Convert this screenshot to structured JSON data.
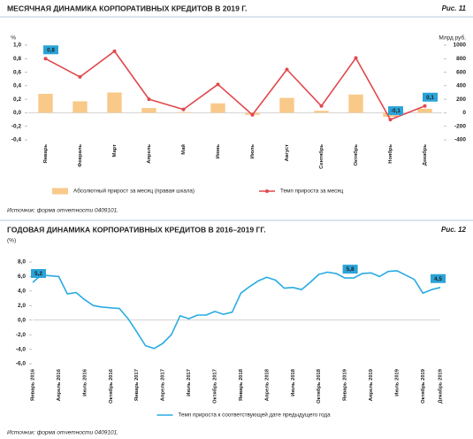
{
  "chart_data": [
    {
      "type": "bar_line",
      "title": "МЕСЯЧНАЯ ДИНАМИКА КОРПОРАТИВНЫХ КРЕДИТОВ В 2019 Г.",
      "figure_label": "Рис. 11",
      "y_label": "%",
      "y2_label": "Млрд руб.",
      "categories": [
        "Январь",
        "Февраль",
        "Март",
        "Апрель",
        "Май",
        "Июнь",
        "Июль",
        "Август",
        "Сентябрь",
        "Октябрь",
        "Ноябрь",
        "Декабрь"
      ],
      "series": [
        {
          "name": "Абсолютный прирост за месяц (правая шкала)",
          "type": "bar",
          "axis": "y2",
          "color": "#f9c98a",
          "values": [
            280,
            170,
            300,
            70,
            10,
            140,
            -30,
            220,
            30,
            270,
            -60,
            60
          ]
        },
        {
          "name": "Темп прироста за месяц",
          "type": "line",
          "color": "#e0484d",
          "marker": true,
          "values": [
            0.8,
            0.53,
            0.91,
            0.2,
            0.05,
            0.42,
            -0.03,
            0.64,
            0.1,
            0.81,
            -0.1,
            0.1
          ],
          "value_labels": [
            "0,8",
            null,
            null,
            null,
            null,
            null,
            null,
            null,
            null,
            null,
            "-0,1",
            "0,1"
          ]
        }
      ],
      "ylim": [
        -0.4,
        1.0
      ],
      "yticks": [
        {
          "value": 1.0,
          "label": "1,0"
        },
        {
          "value": 0.8,
          "label": "0,8"
        },
        {
          "value": 0.6,
          "label": "0,6"
        },
        {
          "value": 0.4,
          "label": "0,4"
        },
        {
          "value": 0.2,
          "label": "0,2"
        },
        {
          "value": 0.0,
          "label": "0,0"
        },
        {
          "value": -0.2,
          "label": "-0,2"
        },
        {
          "value": -0.4,
          "label": "-0,4"
        }
      ],
      "y2lim": [
        -400,
        1000
      ],
      "y2ticks": [
        1000,
        800,
        600,
        400,
        200,
        0,
        -200,
        -400
      ],
      "grid": false,
      "legend": "bottom",
      "source": "Источник: форма отчетности 0409101."
    },
    {
      "type": "line",
      "title": "ГОДОВАЯ ДИНАМИКА КОРПОРАТИВНЫХ КРЕДИТОВ В 2016–2019 ГГ.",
      "figure_label": "Рис. 12",
      "y_label": "(%)",
      "categories": [
        "Январь 2016",
        null,
        null,
        "Апрель 2016",
        null,
        null,
        "Июль 2016",
        null,
        null,
        "Октябрь 2016",
        null,
        null,
        "Январь 2017",
        null,
        null,
        "Апрель 2017",
        null,
        null,
        "Июль 2017",
        null,
        null,
        "Октябрь 2017",
        null,
        null,
        "Январь 2018",
        null,
        null,
        "Апрель 2018",
        null,
        null,
        "Июль 2018",
        null,
        null,
        "Октябрь 2018",
        null,
        null,
        "Январь 2019",
        null,
        null,
        "Апрель 2019",
        null,
        null,
        "Июль 2019",
        null,
        null,
        "Октябрь 2019",
        null,
        "Декабрь 2019"
      ],
      "series": [
        {
          "name": "Темп прироста к соответствующей дате предыдущего года",
          "type": "line",
          "color": "#2aabe2",
          "marker": false,
          "values": [
            5.2,
            6.2,
            6.1,
            6.0,
            3.6,
            3.8,
            2.8,
            2.0,
            1.8,
            1.7,
            1.6,
            0.2,
            -1.6,
            -3.5,
            -3.9,
            -3.2,
            -2.0,
            0.6,
            0.2,
            0.7,
            0.7,
            1.2,
            0.8,
            1.1,
            3.7,
            4.6,
            5.4,
            5.9,
            5.5,
            4.4,
            4.5,
            4.2,
            5.2,
            6.3,
            6.6,
            6.4,
            5.8,
            5.8,
            6.4,
            6.5,
            6.0,
            6.7,
            6.8,
            6.2,
            5.6,
            3.7,
            4.2,
            4.5
          ],
          "value_labels": [
            "5,2",
            null,
            null,
            null,
            null,
            null,
            null,
            null,
            null,
            null,
            null,
            null,
            null,
            null,
            null,
            null,
            null,
            null,
            null,
            null,
            null,
            null,
            null,
            null,
            null,
            null,
            null,
            null,
            null,
            null,
            null,
            null,
            null,
            null,
            null,
            null,
            "5,8",
            null,
            null,
            null,
            null,
            null,
            null,
            null,
            null,
            null,
            null,
            "4,5"
          ]
        }
      ],
      "ylim": [
        -6.0,
        8.0
      ],
      "yticks": [
        {
          "value": 8.0,
          "label": "8,0"
        },
        {
          "value": 6.0,
          "label": "6,0"
        },
        {
          "value": 4.0,
          "label": "4,0"
        },
        {
          "value": 2.0,
          "label": "2,0"
        },
        {
          "value": 0.0,
          "label": "0,0"
        },
        {
          "value": -2.0,
          "label": "-2,0"
        },
        {
          "value": -4.0,
          "label": "-4,0"
        },
        {
          "value": -6.0,
          "label": "-6,0"
        }
      ],
      "grid": false,
      "legend": "bottom",
      "source": "Источник: форма отчетности 0409101."
    }
  ]
}
